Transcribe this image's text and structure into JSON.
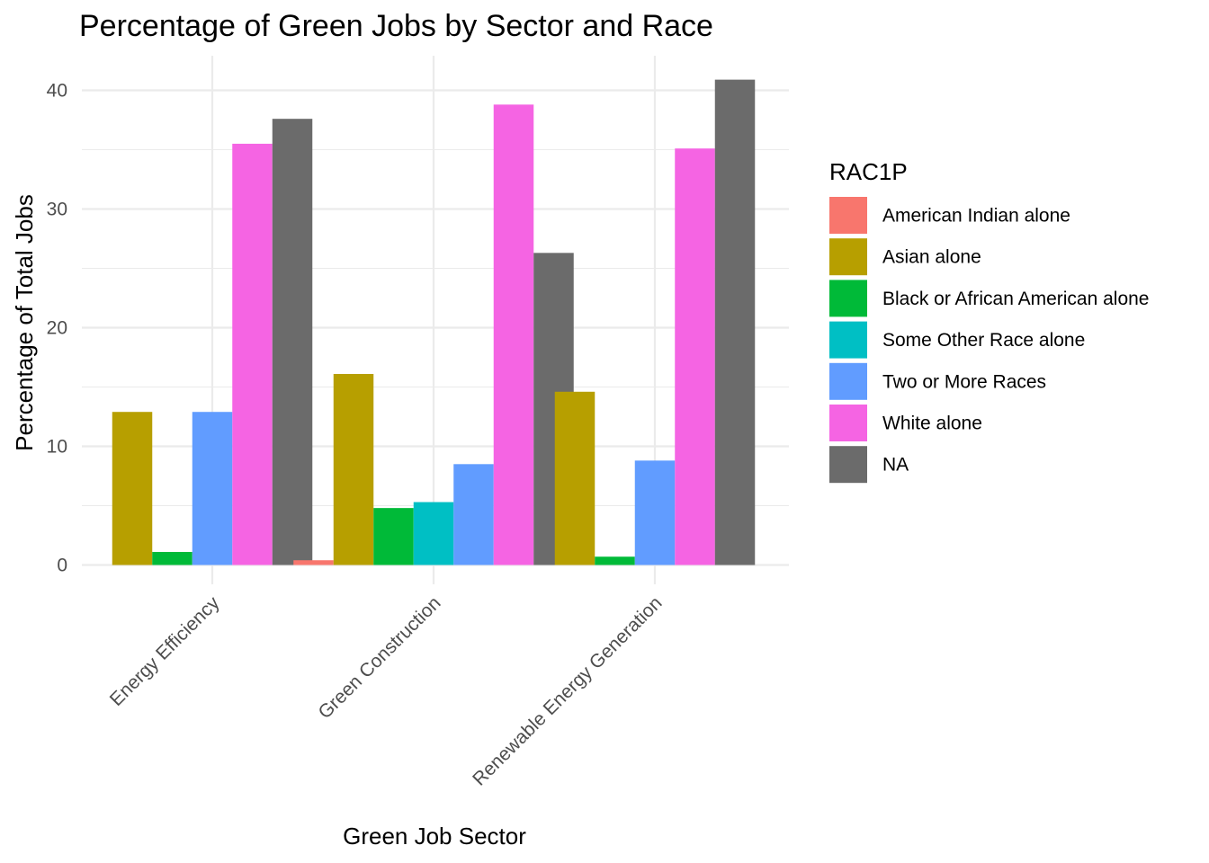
{
  "chart_data": {
    "type": "bar",
    "title": "Percentage of Green Jobs by Sector and Race",
    "xlabel": "Green Job Sector",
    "ylabel": "Percentage of Total Jobs",
    "ylim": [
      0,
      43
    ],
    "yticks": [
      0,
      10,
      20,
      30,
      40
    ],
    "grid": true,
    "legend_position": "right",
    "legend_title": "RAC1P",
    "categories": [
      "Energy Efficiency",
      "Green Construction",
      "Renewable Energy Generation"
    ],
    "series": [
      {
        "name": "American Indian alone",
        "color": "#F8766D",
        "values": [
          null,
          0.4,
          null
        ]
      },
      {
        "name": "Asian alone",
        "color": "#B79F00",
        "values": [
          12.9,
          16.1,
          14.6
        ]
      },
      {
        "name": "Black or African American alone",
        "color": "#00BA38",
        "values": [
          1.1,
          4.8,
          0.7
        ]
      },
      {
        "name": "Some Other Race alone",
        "color": "#00BFC4",
        "values": [
          null,
          5.3,
          null
        ]
      },
      {
        "name": "Two or More Races",
        "color": "#619CFF",
        "values": [
          12.9,
          8.5,
          8.8
        ]
      },
      {
        "name": "White alone",
        "color": "#F564E3",
        "values": [
          35.5,
          38.8,
          35.1
        ]
      },
      {
        "name": "NA",
        "color": "#6B6B6B",
        "values": [
          37.6,
          26.3,
          40.9
        ]
      }
    ]
  }
}
